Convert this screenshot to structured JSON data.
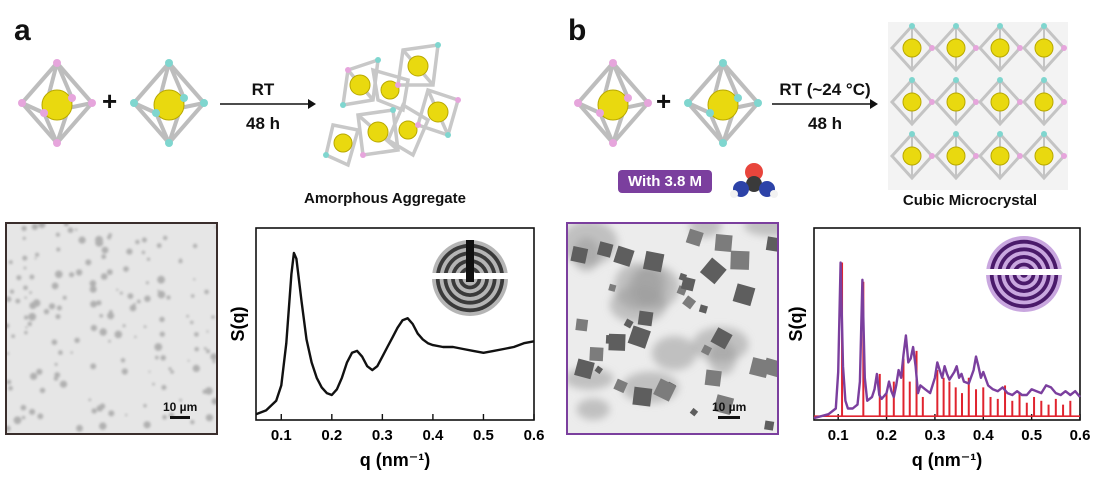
{
  "panel_a": {
    "letter": "a",
    "conditions": [
      "RT",
      "48 h"
    ],
    "plus": "+",
    "product_caption": "Amorphous Aggregate",
    "scalebar": "10 µm",
    "frame_color": "#3a2e2c"
  },
  "panel_b": {
    "letter": "b",
    "conditions": [
      "RT (~24 °C)",
      "48 h"
    ],
    "plus": "+",
    "additive": "With 3.8 M",
    "product_caption": "Cubic Microcrystal",
    "scalebar": "10 µm",
    "frame_color": "#7b3f9e"
  },
  "colors": {
    "cage_yellow": "#e9d90f",
    "vertex_pink": "#e6a5dc",
    "vertex_cyan": "#7fd6cf",
    "purple": "#7b3f9e",
    "red": "#e0242f"
  },
  "chart_data": [
    {
      "type": "line",
      "ylabel": "S(q)",
      "xlabel": "q (nm⁻¹)",
      "xlim": [
        0.05,
        0.6
      ],
      "ylim": [
        0,
        1
      ],
      "xticks": [
        "0.1",
        "0.2",
        "0.3",
        "0.4",
        "0.5",
        "0.6"
      ],
      "series": [
        {
          "x": [
            0.05,
            0.07,
            0.09,
            0.1,
            0.11,
            0.12,
            0.125,
            0.13,
            0.14,
            0.15,
            0.16,
            0.17,
            0.18,
            0.19,
            0.2,
            0.21,
            0.22,
            0.23,
            0.24,
            0.25,
            0.26,
            0.27,
            0.28,
            0.29,
            0.3,
            0.31,
            0.32,
            0.33,
            0.34,
            0.35,
            0.36,
            0.37,
            0.38,
            0.39,
            0.4,
            0.42,
            0.44,
            0.46,
            0.48,
            0.5,
            0.52,
            0.54,
            0.56,
            0.58,
            0.6
          ],
          "y": [
            0.03,
            0.05,
            0.1,
            0.18,
            0.4,
            0.76,
            0.87,
            0.84,
            0.62,
            0.42,
            0.3,
            0.22,
            0.17,
            0.14,
            0.13,
            0.16,
            0.22,
            0.3,
            0.35,
            0.36,
            0.33,
            0.28,
            0.26,
            0.28,
            0.33,
            0.38,
            0.43,
            0.48,
            0.52,
            0.53,
            0.5,
            0.45,
            0.42,
            0.4,
            0.39,
            0.38,
            0.38,
            0.37,
            0.36,
            0.35,
            0.36,
            0.37,
            0.38,
            0.4,
            0.41
          ]
        }
      ]
    },
    {
      "type": "line",
      "ylabel": "S(q)",
      "xlabel": "q (nm⁻¹)",
      "xlim": [
        0.05,
        0.6
      ],
      "ylim": [
        0,
        1
      ],
      "xticks": [
        "0.1",
        "0.2",
        "0.3",
        "0.4",
        "0.5",
        "0.6"
      ],
      "series": [
        {
          "x": [
            0.05,
            0.08,
            0.095,
            0.1,
            0.105,
            0.11,
            0.115,
            0.12,
            0.13,
            0.14,
            0.145,
            0.15,
            0.155,
            0.16,
            0.17,
            0.175,
            0.18,
            0.185,
            0.19,
            0.2,
            0.205,
            0.21,
            0.215,
            0.22,
            0.225,
            0.23,
            0.235,
            0.24,
            0.245,
            0.25,
            0.255,
            0.26,
            0.265,
            0.27,
            0.28,
            0.29,
            0.3,
            0.305,
            0.31,
            0.315,
            0.32,
            0.325,
            0.33,
            0.34,
            0.345,
            0.35,
            0.355,
            0.36,
            0.37,
            0.38,
            0.385,
            0.39,
            0.395,
            0.4,
            0.41,
            0.42,
            0.43,
            0.44,
            0.45,
            0.46,
            0.47,
            0.48,
            0.49,
            0.5,
            0.51,
            0.52,
            0.53,
            0.54,
            0.55,
            0.56,
            0.57,
            0.58,
            0.59,
            0.6
          ],
          "y": [
            0.01,
            0.03,
            0.06,
            0.25,
            0.82,
            0.28,
            0.1,
            0.06,
            0.06,
            0.08,
            0.2,
            0.73,
            0.22,
            0.1,
            0.12,
            0.16,
            0.24,
            0.13,
            0.11,
            0.14,
            0.2,
            0.15,
            0.12,
            0.18,
            0.26,
            0.22,
            0.34,
            0.44,
            0.3,
            0.32,
            0.38,
            0.28,
            0.14,
            0.18,
            0.16,
            0.14,
            0.22,
            0.3,
            0.26,
            0.22,
            0.28,
            0.24,
            0.21,
            0.25,
            0.28,
            0.22,
            0.24,
            0.2,
            0.19,
            0.26,
            0.33,
            0.28,
            0.22,
            0.25,
            0.18,
            0.16,
            0.15,
            0.17,
            0.14,
            0.13,
            0.15,
            0.13,
            0.13,
            0.16,
            0.15,
            0.14,
            0.18,
            0.17,
            0.14,
            0.13,
            0.15,
            0.13,
            0.15,
            0.12
          ]
        }
      ],
      "sticks": {
        "x": [
          0.108,
          0.152,
          0.186,
          0.2,
          0.215,
          0.235,
          0.248,
          0.262,
          0.275,
          0.305,
          0.318,
          0.33,
          0.343,
          0.356,
          0.37,
          0.385,
          0.4,
          0.415,
          0.43,
          0.445,
          0.46,
          0.475,
          0.49,
          0.505,
          0.52,
          0.535,
          0.55,
          0.565,
          0.58
        ],
        "y": [
          0.8,
          0.7,
          0.22,
          0.12,
          0.18,
          0.3,
          0.18,
          0.34,
          0.1,
          0.24,
          0.2,
          0.18,
          0.15,
          0.12,
          0.2,
          0.14,
          0.15,
          0.1,
          0.09,
          0.16,
          0.08,
          0.12,
          0.07,
          0.1,
          0.08,
          0.06,
          0.09,
          0.06,
          0.08
        ]
      }
    }
  ]
}
